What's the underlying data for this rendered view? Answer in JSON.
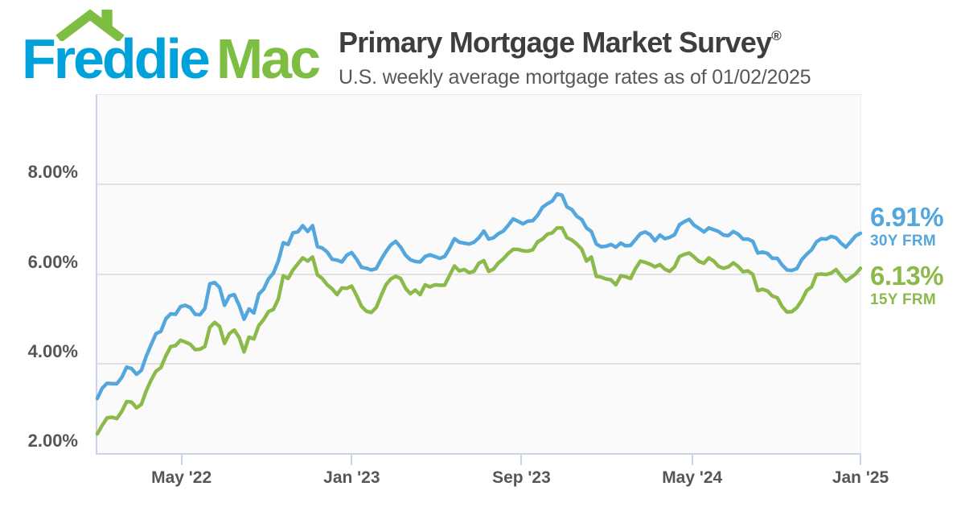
{
  "header": {
    "logo": {
      "part1": "Freddie",
      "part2": "Mac",
      "blue": "#00a2dc",
      "green": "#7dbe42"
    },
    "title": "Primary Mortgage Market Survey",
    "title_reg": "®",
    "subtitle": "U.S. weekly average mortgage rates as of 01/02/2025"
  },
  "chart_data": {
    "type": "line",
    "title": "Primary Mortgage Market Survey",
    "subtitle": "U.S. weekly average mortgage rates as of 01/02/2025",
    "as_of_date": "01/02/2025",
    "x_unit": "weekly observations from Jan 2022 to Jan 2, 2025",
    "grid": "horizontal",
    "legend_position": "right-end-callouts",
    "ylim": [
      2,
      10
    ],
    "yticks": [
      {
        "value": 8,
        "label": "8.00%"
      },
      {
        "value": 6,
        "label": "6.00%"
      },
      {
        "value": 4,
        "label": "4.00%"
      },
      {
        "value": 2,
        "label": "2.00%"
      }
    ],
    "xticks": [
      {
        "index": 17.2,
        "label": "May '22"
      },
      {
        "index": 52.0,
        "label": "Jan '23"
      },
      {
        "index": 86.7,
        "label": "Sep '23"
      },
      {
        "index": 121.6,
        "label": "May '24"
      },
      {
        "index": 156,
        "label": "Jan '25"
      }
    ],
    "colors": {
      "grid": "#e1e1e1",
      "axis": "#c9d3ea",
      "plot_bg": "#fafafa",
      "tick_text": "#55565a"
    },
    "series": [
      {
        "name": "30Y FRM",
        "color": "#54a7dc",
        "latest_label": "6.91%",
        "latest_value": 6.91,
        "values": [
          3.22,
          3.45,
          3.56,
          3.55,
          3.55,
          3.69,
          3.92,
          3.89,
          3.76,
          3.85,
          4.16,
          4.42,
          4.67,
          4.72,
          5.0,
          5.11,
          5.1,
          5.27,
          5.3,
          5.25,
          5.1,
          5.09,
          5.23,
          5.78,
          5.81,
          5.7,
          5.3,
          5.51,
          5.54,
          5.3,
          4.99,
          5.22,
          5.13,
          5.55,
          5.66,
          5.89,
          6.02,
          6.29,
          6.7,
          6.66,
          6.92,
          6.94,
          7.08,
          6.95,
          7.08,
          6.61,
          6.58,
          6.49,
          6.33,
          6.31,
          6.27,
          6.42,
          6.48,
          6.33,
          6.15,
          6.13,
          6.09,
          6.12,
          6.32,
          6.5,
          6.65,
          6.73,
          6.6,
          6.42,
          6.32,
          6.28,
          6.27,
          6.39,
          6.43,
          6.39,
          6.35,
          6.39,
          6.57,
          6.79,
          6.71,
          6.69,
          6.67,
          6.71,
          6.81,
          6.96,
          6.78,
          6.81,
          6.9,
          6.96,
          7.09,
          7.23,
          7.18,
          7.12,
          7.18,
          7.19,
          7.31,
          7.49,
          7.57,
          7.63,
          7.79,
          7.76,
          7.5,
          7.44,
          7.29,
          7.22,
          7.03,
          6.95,
          6.67,
          6.61,
          6.62,
          6.66,
          6.6,
          6.69,
          6.63,
          6.64,
          6.77,
          6.9,
          6.94,
          6.88,
          6.74,
          6.87,
          6.79,
          6.82,
          6.88,
          7.1,
          7.17,
          7.22,
          7.09,
          7.02,
          6.94,
          7.03,
          6.99,
          6.95,
          6.87,
          6.86,
          6.95,
          6.89,
          6.78,
          6.78,
          6.73,
          6.47,
          6.49,
          6.46,
          6.35,
          6.35,
          6.2,
          6.09,
          6.08,
          6.12,
          6.32,
          6.44,
          6.54,
          6.72,
          6.79,
          6.78,
          6.84,
          6.81,
          6.69,
          6.6,
          6.72,
          6.85,
          6.91
        ]
      },
      {
        "name": "15Y FRM",
        "color": "#8cba4a",
        "latest_label": "6.13%",
        "latest_value": 6.13,
        "values": [
          2.43,
          2.62,
          2.79,
          2.8,
          2.77,
          2.93,
          3.15,
          3.14,
          3.01,
          3.09,
          3.39,
          3.63,
          3.83,
          3.91,
          4.17,
          4.38,
          4.4,
          4.52,
          4.48,
          4.43,
          4.31,
          4.32,
          4.38,
          4.81,
          4.92,
          4.83,
          4.45,
          4.67,
          4.75,
          4.58,
          4.26,
          4.59,
          4.55,
          4.85,
          4.98,
          5.16,
          5.21,
          5.44,
          5.96,
          5.9,
          6.09,
          6.23,
          6.36,
          6.29,
          6.38,
          5.98,
          5.9,
          5.76,
          5.67,
          5.54,
          5.69,
          5.68,
          5.73,
          5.52,
          5.28,
          5.17,
          5.14,
          5.25,
          5.51,
          5.76,
          5.89,
          5.95,
          5.9,
          5.68,
          5.56,
          5.64,
          5.54,
          5.76,
          5.71,
          5.76,
          5.75,
          5.75,
          5.97,
          6.18,
          6.07,
          6.1,
          6.03,
          6.06,
          6.24,
          6.3,
          6.06,
          6.11,
          6.25,
          6.34,
          6.46,
          6.55,
          6.55,
          6.52,
          6.51,
          6.54,
          6.72,
          6.78,
          6.89,
          6.92,
          7.03,
          7.03,
          6.81,
          6.76,
          6.67,
          6.56,
          6.29,
          6.38,
          5.95,
          5.93,
          5.89,
          5.87,
          5.76,
          5.96,
          5.94,
          5.9,
          6.12,
          6.29,
          6.26,
          6.22,
          6.16,
          6.21,
          6.11,
          6.06,
          6.16,
          6.39,
          6.44,
          6.47,
          6.38,
          6.28,
          6.24,
          6.36,
          6.29,
          6.17,
          6.13,
          6.16,
          6.25,
          6.17,
          6.05,
          6.07,
          5.99,
          5.63,
          5.66,
          5.62,
          5.51,
          5.47,
          5.27,
          5.15,
          5.16,
          5.25,
          5.41,
          5.63,
          5.71,
          5.99,
          6.0,
          5.99,
          6.02,
          6.1,
          5.96,
          5.84,
          5.92,
          6.0,
          6.13
        ]
      }
    ]
  }
}
